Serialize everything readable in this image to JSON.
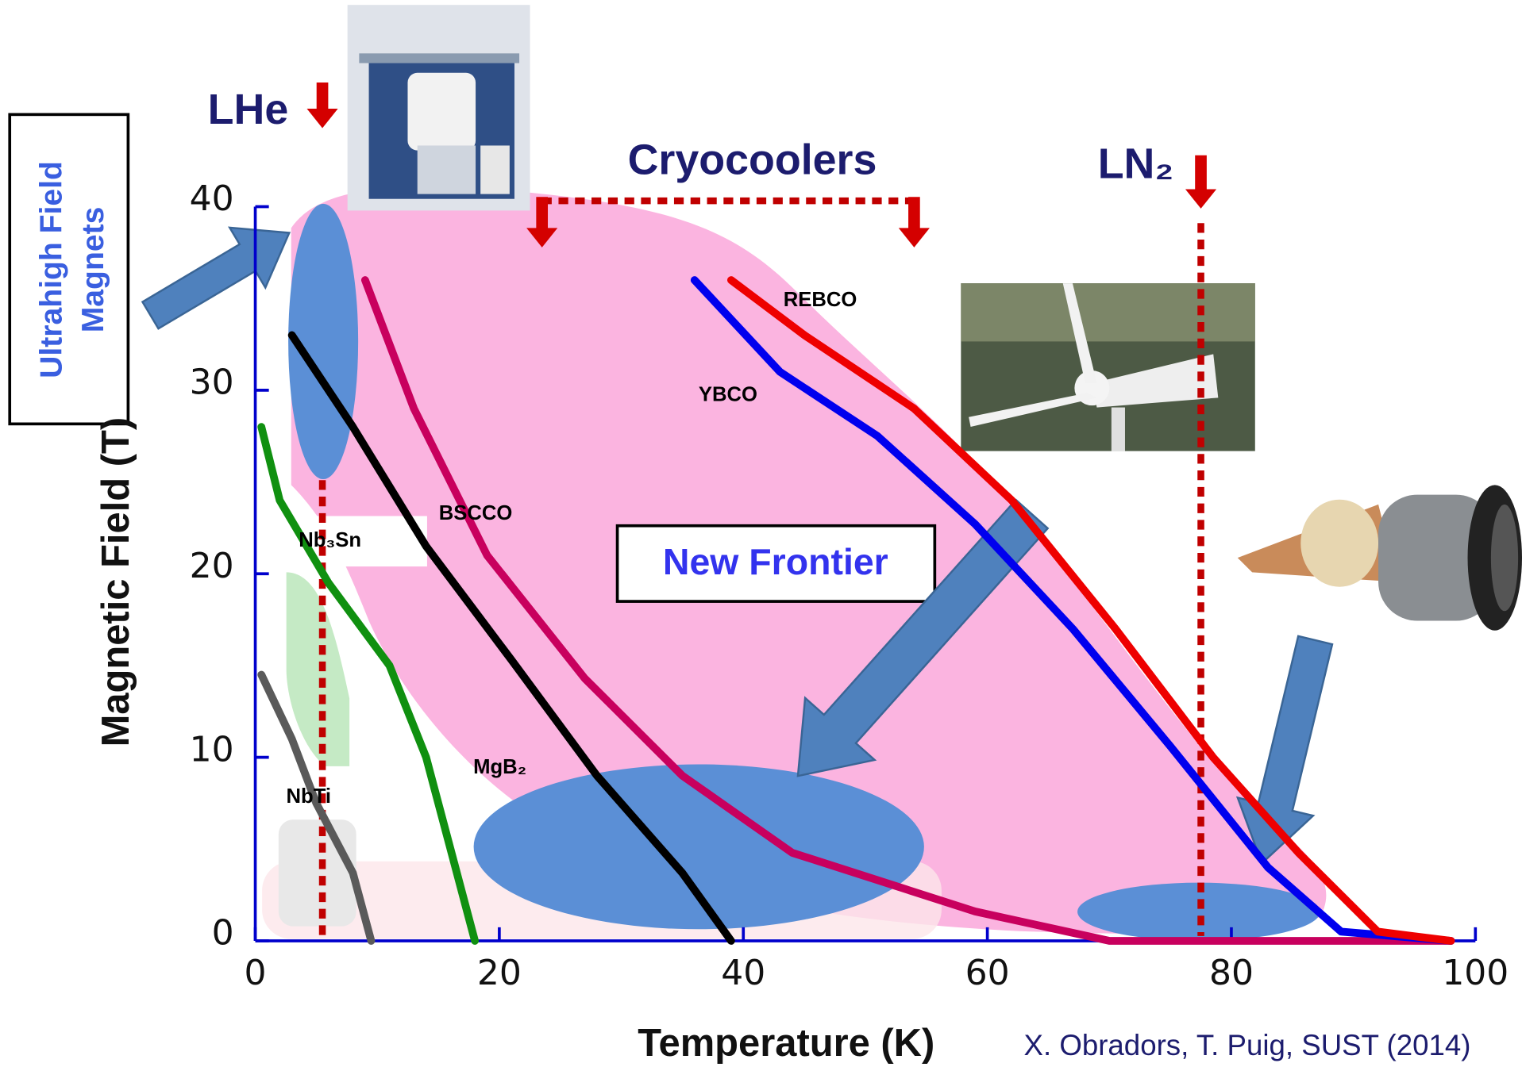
{
  "chart_data": {
    "type": "line",
    "x_label": "Temperature (K)",
    "y_label": "Magnetic Field  (T)",
    "xlim": [
      0,
      100
    ],
    "xticks": [
      0,
      20,
      40,
      60,
      80,
      100
    ],
    "ylim": [
      0,
      40
    ],
    "yticks": [
      0,
      10,
      20,
      30,
      40
    ],
    "axis_color": "#0000cc",
    "series": [
      {
        "name": "NbTi",
        "color": "#5a5a5a",
        "x": [
          0.5,
          3,
          5,
          8,
          9.5
        ],
        "values": [
          14.5,
          11,
          7.5,
          3.7,
          0
        ]
      },
      {
        "name": "Nb₃Sn",
        "color": "#109010",
        "x": [
          0.5,
          2,
          6,
          11,
          14,
          16,
          18
        ],
        "values": [
          28,
          24,
          19.5,
          15,
          10,
          5,
          0
        ]
      },
      {
        "name": "MgB₂",
        "color": "#000000",
        "x": [
          3,
          8,
          14,
          21,
          28,
          35,
          39
        ],
        "values": [
          33,
          28,
          21.5,
          15.3,
          9,
          3.7,
          0
        ]
      },
      {
        "name": "BSCCO",
        "color": "#c8005e",
        "x": [
          9,
          13,
          19,
          27,
          35,
          44,
          59,
          70,
          98
        ],
        "values": [
          36,
          29,
          21,
          14.3,
          9,
          4.8,
          1.6,
          0,
          0
        ]
      },
      {
        "name": "YBCO",
        "color": "#0000ee",
        "x": [
          36,
          43,
          51,
          59,
          67,
          75,
          83,
          89,
          98
        ],
        "values": [
          36,
          31,
          27.5,
          22.7,
          17,
          10.6,
          4,
          0.5,
          0
        ]
      },
      {
        "name": "REBCO",
        "color": "#ee0000",
        "x": [
          39,
          45,
          54,
          62,
          70.5,
          78.5,
          85.5,
          92,
          98
        ],
        "values": [
          36,
          33,
          29,
          24,
          17,
          10,
          4.8,
          0.5,
          0
        ]
      }
    ],
    "markers": [
      {
        "label": "LHe",
        "x": 5.5
      },
      {
        "label": "LN₂",
        "x": 77.5
      }
    ],
    "cryocoolers": {
      "label": "Cryocoolers",
      "range": [
        23.5,
        54
      ]
    },
    "annotations": {
      "ultrahigh": [
        "Ultrahigh Field",
        "Magnets"
      ],
      "frontier": "New Frontier",
      "citation": "X. Obradors, T. Puig, SUST (2014)"
    }
  }
}
